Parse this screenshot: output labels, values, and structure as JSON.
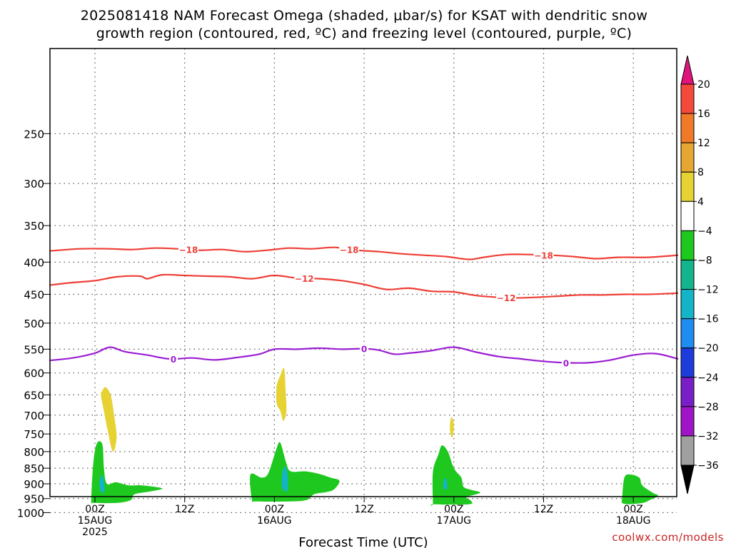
{
  "chart_data": {
    "type": "time-height cross section",
    "title_line1": "2025081418 NAM Forecast Omega (shaded, μbar/s) for KSAT with dendritic snow",
    "title_line2": "growth region (contoured, red, ºC) and freezing level (contoured, purple, ºC)",
    "xlabel": "Forecast Time (UTC)",
    "credit": "coolwx.com/models",
    "x_ticks": [
      {
        "hour": 6,
        "lines": [
          "00Z",
          "15AUG",
          "2025"
        ]
      },
      {
        "hour": 18,
        "lines": [
          "12Z"
        ]
      },
      {
        "hour": 30,
        "lines": [
          "00Z",
          "16AUG"
        ]
      },
      {
        "hour": 42,
        "lines": [
          "12Z"
        ]
      },
      {
        "hour": 54,
        "lines": [
          "00Z",
          "17AUG"
        ]
      },
      {
        "hour": 66,
        "lines": [
          "12Z"
        ]
      },
      {
        "hour": 78,
        "lines": [
          "00Z",
          "18AUG"
        ]
      }
    ],
    "xlim_hours": [
      0,
      84
    ],
    "y_ticks_hpa": [
      250,
      300,
      350,
      400,
      450,
      500,
      550,
      600,
      650,
      700,
      750,
      800,
      850,
      900,
      950,
      1000
    ],
    "y_axis": "pressure (hPa), log-pressure scale, inverted",
    "ylim_hpa": [
      200,
      1030
    ],
    "grid": "dotted horizontal lines at each pressure level",
    "colorbar": {
      "units": "μbar/s",
      "labels": [
        "20",
        "16",
        "12",
        "8",
        "4",
        "−4",
        "−8",
        "−12",
        "−16",
        "−20",
        "−24",
        "−28",
        "−32",
        "−36"
      ],
      "bins": [
        {
          "range": [
            16,
            20
          ],
          "color": "#f44a3c"
        },
        {
          "range": [
            12,
            16
          ],
          "color": "#f07a28"
        },
        {
          "range": [
            8,
            12
          ],
          "color": "#e6a632"
        },
        {
          "range": [
            4,
            8
          ],
          "color": "#e6d232"
        },
        {
          "range": [
            -4,
            4
          ],
          "color": "#ffffff"
        },
        {
          "range": [
            -8,
            -4
          ],
          "color": "#1ec81e"
        },
        {
          "range": [
            -12,
            -8
          ],
          "color": "#14b48c"
        },
        {
          "range": [
            -16,
            -12
          ],
          "color": "#14b4c8"
        },
        {
          "range": [
            -20,
            -16
          ],
          "color": "#1e8cf0"
        },
        {
          "range": [
            -24,
            -20
          ],
          "color": "#1e3cdc"
        },
        {
          "range": [
            -28,
            -24
          ],
          "color": "#7a1ec8"
        },
        {
          "range": [
            -32,
            -28
          ],
          "color": "#a014c8"
        },
        {
          "range": [
            -36,
            -32
          ],
          "color": "#a0a0a0"
        }
      ],
      "top_arrow_color": "#e0147c",
      "bottom_arrow_color": "#000000"
    },
    "contours": [
      {
        "label": "−18",
        "color": "#ef3e36",
        "label_hours": [
          18.5,
          40,
          66
        ],
        "points": [
          [
            0,
            384
          ],
          [
            4,
            381
          ],
          [
            8,
            381
          ],
          [
            11,
            382
          ],
          [
            14,
            380
          ],
          [
            17,
            381
          ],
          [
            20,
            383
          ],
          [
            23,
            382
          ],
          [
            26,
            385
          ],
          [
            29,
            383
          ],
          [
            32,
            380
          ],
          [
            35,
            381
          ],
          [
            38,
            379
          ],
          [
            41,
            383
          ],
          [
            44,
            385
          ],
          [
            47,
            388
          ],
          [
            50,
            390
          ],
          [
            53,
            392
          ],
          [
            56,
            396
          ],
          [
            58,
            393
          ],
          [
            61,
            389
          ],
          [
            64,
            389
          ],
          [
            67,
            390
          ],
          [
            70,
            392
          ],
          [
            73,
            395
          ],
          [
            76,
            393
          ],
          [
            80,
            393
          ],
          [
            84,
            390
          ]
        ]
      },
      {
        "label": "−12",
        "color": "#ef3e36",
        "label_hours": [
          34,
          61
        ],
        "points": [
          [
            0,
            435
          ],
          [
            3,
            431
          ],
          [
            6,
            428
          ],
          [
            9,
            422
          ],
          [
            12,
            421
          ],
          [
            13,
            425
          ],
          [
            15,
            419
          ],
          [
            18,
            420
          ],
          [
            21,
            421
          ],
          [
            24,
            422
          ],
          [
            27,
            425
          ],
          [
            30,
            420
          ],
          [
            33,
            424
          ],
          [
            36,
            425
          ],
          [
            39,
            428
          ],
          [
            42,
            434
          ],
          [
            45,
            442
          ],
          [
            48,
            440
          ],
          [
            51,
            445
          ],
          [
            54,
            446
          ],
          [
            57,
            452
          ],
          [
            60,
            455
          ],
          [
            62,
            456
          ],
          [
            65,
            455
          ],
          [
            68,
            453
          ],
          [
            71,
            451
          ],
          [
            74,
            451
          ],
          [
            77,
            450
          ],
          [
            80,
            450
          ],
          [
            84,
            448
          ]
        ]
      },
      {
        "label": "0",
        "color": "#9a1ed2",
        "label_hours": [
          16.5,
          42,
          69
        ],
        "points": [
          [
            0,
            573
          ],
          [
            3,
            568
          ],
          [
            6,
            558
          ],
          [
            8,
            546
          ],
          [
            10,
            555
          ],
          [
            13,
            562
          ],
          [
            16,
            570
          ],
          [
            19,
            568
          ],
          [
            22,
            572
          ],
          [
            25,
            567
          ],
          [
            28,
            560
          ],
          [
            30,
            550
          ],
          [
            33,
            550
          ],
          [
            36,
            548
          ],
          [
            39,
            550
          ],
          [
            42,
            549
          ],
          [
            44,
            552
          ],
          [
            46,
            560
          ],
          [
            48,
            558
          ],
          [
            51,
            553
          ],
          [
            54,
            546
          ],
          [
            57,
            556
          ],
          [
            60,
            565
          ],
          [
            63,
            570
          ],
          [
            66,
            575
          ],
          [
            69,
            578
          ],
          [
            72,
            578
          ],
          [
            75,
            572
          ],
          [
            78,
            562
          ],
          [
            81,
            559
          ],
          [
            84,
            570
          ]
        ]
      }
    ],
    "omega_regions": [
      {
        "value_range": [
          -8,
          -4
        ],
        "color": "#1ec81e",
        "points": [
          [
            5.5,
            960
          ],
          [
            5.8,
            830
          ],
          [
            6.3,
            775
          ],
          [
            7,
            780
          ],
          [
            7.2,
            850
          ],
          [
            7.6,
            900
          ],
          [
            8.8,
            895
          ],
          [
            10.5,
            905
          ],
          [
            12.3,
            905
          ],
          [
            15,
            915
          ],
          [
            13.5,
            925
          ],
          [
            11.3,
            935
          ],
          [
            10.8,
            955
          ],
          [
            9,
            965
          ],
          [
            5.8,
            965
          ]
        ]
      },
      {
        "value_range": [
          -12,
          -8
        ],
        "color": "#14b4c8",
        "points": [
          [
            6.6,
            905
          ],
          [
            6.8,
            875
          ],
          [
            7.1,
            880
          ],
          [
            7.3,
            920
          ],
          [
            6.9,
            930
          ]
        ]
      },
      {
        "value_range": [
          4,
          8
        ],
        "color": "#e6d232",
        "points": [
          [
            7,
            640
          ],
          [
            7.4,
            632
          ],
          [
            8.1,
            650
          ],
          [
            8.6,
            705
          ],
          [
            8.9,
            760
          ],
          [
            8.4,
            800
          ],
          [
            7.7,
            740
          ],
          [
            7.2,
            690
          ],
          [
            6.8,
            650
          ]
        ]
      },
      {
        "value_range": [
          -8,
          -4
        ],
        "color": "#1ec81e",
        "points": [
          [
            27,
            955
          ],
          [
            26.8,
            870
          ],
          [
            28.3,
            880
          ],
          [
            29.2,
            865
          ],
          [
            30.3,
            790
          ],
          [
            30.8,
            775
          ],
          [
            31.6,
            835
          ],
          [
            32.2,
            860
          ],
          [
            34.2,
            860
          ],
          [
            36,
            868
          ],
          [
            37.5,
            880
          ],
          [
            38.7,
            890
          ],
          [
            38,
            918
          ],
          [
            36.9,
            928
          ],
          [
            35.3,
            935
          ],
          [
            34.3,
            955
          ],
          [
            32.2,
            960
          ],
          [
            27.5,
            960
          ]
        ]
      },
      {
        "value_range": [
          -12,
          -8
        ],
        "color": "#14b4c8",
        "points": [
          [
            31,
            910
          ],
          [
            31.1,
            860
          ],
          [
            31.5,
            845
          ],
          [
            31.8,
            880
          ],
          [
            31.7,
            925
          ]
        ]
      },
      {
        "value_range": [
          4,
          8
        ],
        "color": "#e6d232",
        "points": [
          [
            30.3,
            630
          ],
          [
            30.8,
            605
          ],
          [
            31.3,
            590
          ],
          [
            31.5,
            640
          ],
          [
            31.6,
            690
          ],
          [
            31.2,
            715
          ],
          [
            30.8,
            690
          ],
          [
            30.3,
            670
          ]
        ]
      },
      {
        "value_range": [
          -8,
          -4
        ],
        "color": "#1ec81e",
        "points": [
          [
            51.2,
            965
          ],
          [
            51.2,
            860
          ],
          [
            51.9,
            810
          ],
          [
            52.4,
            782
          ],
          [
            53.2,
            800
          ],
          [
            54,
            850
          ],
          [
            55,
            880
          ],
          [
            55.3,
            910
          ],
          [
            56.3,
            920
          ],
          [
            57.5,
            930
          ],
          [
            55.7,
            945
          ],
          [
            56.3,
            958
          ],
          [
            56,
            970
          ],
          [
            51.3,
            970
          ]
        ]
      },
      {
        "value_range": [
          -12,
          -8
        ],
        "color": "#14b4c8",
        "points": [
          [
            52.6,
            915
          ],
          [
            52.7,
            885
          ],
          [
            53,
            885
          ],
          [
            53.1,
            915
          ]
        ]
      },
      {
        "value_range": [
          4,
          8
        ],
        "color": "#e6d232",
        "points": [
          [
            53.5,
            720
          ],
          [
            53.7,
            705
          ],
          [
            54,
            725
          ],
          [
            53.8,
            760
          ],
          [
            53.5,
            745
          ]
        ]
      },
      {
        "value_range": [
          -8,
          -4
        ],
        "color": "#1ec81e",
        "points": [
          [
            76.5,
            950
          ],
          [
            76.8,
            880
          ],
          [
            77.6,
            870
          ],
          [
            78.8,
            880
          ],
          [
            79.2,
            905
          ],
          [
            80.6,
            930
          ],
          [
            81.3,
            940
          ],
          [
            80.2,
            955
          ],
          [
            79.3,
            965
          ],
          [
            77.4,
            970
          ],
          [
            76.5,
            965
          ]
        ]
      }
    ],
    "terrain": {
      "color": "#a0522d",
      "top_hpa": 975
    }
  }
}
